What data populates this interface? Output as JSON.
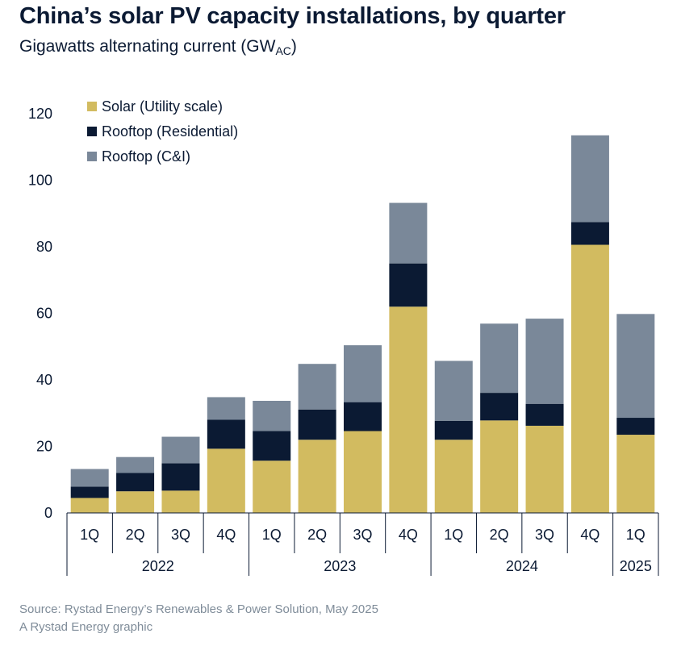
{
  "header": {
    "title": "China’s solar PV capacity installations, by quarter",
    "subtitle_main": "Gigawatts alternating current (GW",
    "subtitle_sub": "AC",
    "subtitle_end": ")"
  },
  "footer": {
    "source": "Source: Rystad Energy’s Renewables & Power Solution, May 2025",
    "credit": "A Rystad Energy graphic"
  },
  "chart_data": {
    "type": "bar",
    "stacked": true,
    "title": "China’s solar PV capacity installations, by quarter",
    "ylabel": "",
    "ylim": [
      0,
      120
    ],
    "yticks": [
      0,
      20,
      40,
      60,
      80,
      100,
      120
    ],
    "categories": [
      "1Q",
      "2Q",
      "3Q",
      "4Q",
      "1Q",
      "2Q",
      "3Q",
      "4Q",
      "1Q",
      "2Q",
      "3Q",
      "4Q",
      "1Q"
    ],
    "years": [
      {
        "label": "2022",
        "start": 0,
        "end": 3
      },
      {
        "label": "2023",
        "start": 4,
        "end": 7
      },
      {
        "label": "2024",
        "start": 8,
        "end": 11
      },
      {
        "label": "2025",
        "start": 12,
        "end": 12
      }
    ],
    "series": [
      {
        "name": "Solar (Utility scale)",
        "color": "#d2bb60",
        "values": [
          4.5,
          6.5,
          6.7,
          19.3,
          15.7,
          22.0,
          24.6,
          62.0,
          22.0,
          27.8,
          26.2,
          80.6,
          23.5
        ]
      },
      {
        "name": "Rooftop (Residential)",
        "color": "#0b1a33",
        "values": [
          3.4,
          5.5,
          8.2,
          8.7,
          8.9,
          9.1,
          8.7,
          13.0,
          5.7,
          8.3,
          6.6,
          6.8,
          5.1
        ]
      },
      {
        "name": "Rooftop (C&I)",
        "color": "#7a8899",
        "values": [
          5.3,
          4.8,
          8.0,
          6.8,
          9.1,
          13.7,
          17.1,
          18.2,
          18.0,
          20.8,
          25.6,
          26.1,
          31.2
        ]
      }
    ],
    "legend_position": "top-left",
    "grid": false
  }
}
